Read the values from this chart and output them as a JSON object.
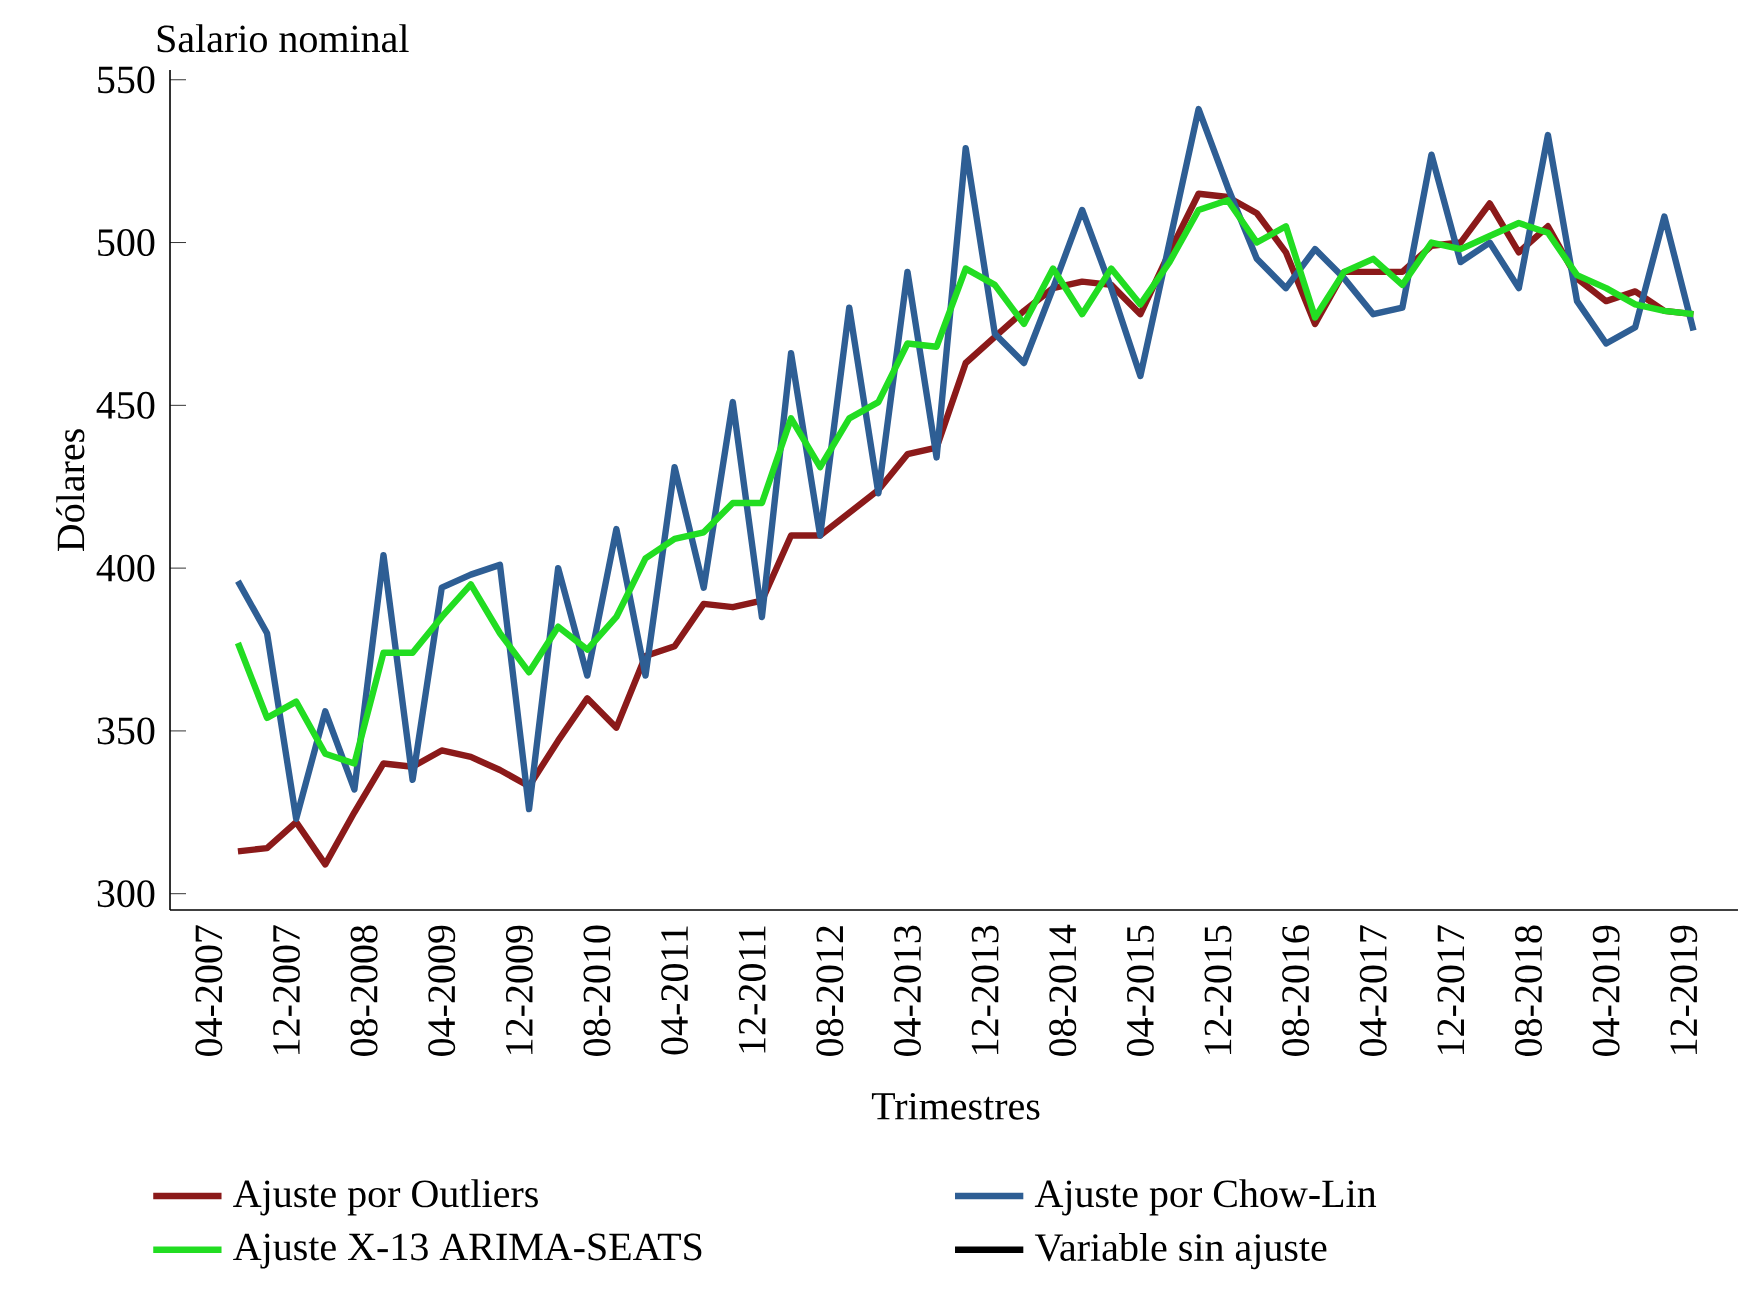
{
  "chart_data": {
    "type": "line",
    "title": "Salario nominal",
    "xlabel": "Trimestres",
    "ylabel": "Dólares",
    "x": [
      "2007-07",
      "2007-10",
      "2008-01",
      "2008-04",
      "2008-07",
      "2008-10",
      "2009-01",
      "2009-04",
      "2009-07",
      "2009-10",
      "2010-01",
      "2010-04",
      "2010-07",
      "2010-10",
      "2011-01",
      "2011-04",
      "2011-07",
      "2011-10",
      "2012-01",
      "2012-04",
      "2012-07",
      "2012-10",
      "2013-01",
      "2013-04",
      "2013-07",
      "2013-10",
      "2014-01",
      "2014-04",
      "2014-07",
      "2014-10",
      "2015-01",
      "2015-04",
      "2015-07",
      "2015-10",
      "2016-01",
      "2016-04",
      "2016-07",
      "2016-10",
      "2017-01",
      "2017-04",
      "2017-07",
      "2017-10",
      "2018-01",
      "2018-04",
      "2018-07",
      "2018-10",
      "2019-01",
      "2019-04",
      "2019-07",
      "2019-10",
      "2020-01"
    ],
    "series": [
      {
        "name": "Ajuste por Outliers",
        "color": "#8b1a1a",
        "values": [
          313,
          314,
          322,
          309,
          325,
          340,
          339,
          344,
          342,
          338,
          333,
          347,
          360,
          351,
          373,
          376,
          389,
          388,
          390,
          410,
          410,
          417,
          424,
          435,
          437,
          463,
          471,
          479,
          486,
          488,
          487,
          478,
          497,
          515,
          514,
          509,
          497,
          475,
          491,
          491,
          491,
          499,
          500,
          512,
          497,
          505,
          489,
          482,
          485,
          479,
          478
        ]
      },
      {
        "name": "Ajuste por Chow-Lin",
        "color": "#2e5e94",
        "values": [
          396,
          380,
          323,
          356,
          332,
          404,
          335,
          394,
          398,
          401,
          326,
          400,
          367,
          412,
          367,
          431,
          394,
          451,
          385,
          466,
          410,
          480,
          423,
          491,
          434,
          529,
          472,
          463,
          486,
          510,
          486,
          459,
          500,
          541,
          517,
          495,
          486,
          498,
          489,
          478,
          480,
          527,
          494,
          500,
          486,
          533,
          482,
          469,
          474,
          508,
          473
        ]
      },
      {
        "name": "Ajuste X-13 ARIMA-SEATS",
        "color": "#22dd22",
        "values": [
          377,
          354,
          359,
          343,
          340,
          374,
          374,
          385,
          395,
          380,
          368,
          382,
          375,
          385,
          403,
          409,
          411,
          420,
          420,
          446,
          431,
          446,
          451,
          469,
          468,
          492,
          487,
          475,
          492,
          478,
          492,
          481,
          494,
          510,
          513,
          500,
          505,
          477,
          491,
          495,
          487,
          500,
          498,
          502,
          506,
          503,
          490,
          486,
          481,
          479,
          478
        ]
      },
      {
        "name": "Variable sin ajuste",
        "color": "#000000",
        "values": [
          null,
          null,
          null,
          null,
          null,
          null,
          null,
          null,
          null,
          null,
          null,
          null,
          null,
          null,
          null,
          null,
          null,
          null,
          null,
          null,
          null,
          null,
          null,
          null,
          null,
          null,
          null,
          null,
          null,
          null,
          null,
          null,
          null,
          null,
          null,
          null,
          null,
          null,
          null,
          null,
          null,
          null,
          null,
          null,
          null,
          null,
          null,
          null,
          null,
          null,
          null
        ]
      }
    ],
    "xlim": [
      "2006-12",
      "2020-06"
    ],
    "xticks": [
      {
        "value": "2007-04",
        "label": "04-2007"
      },
      {
        "value": "2007-12",
        "label": "12-2007"
      },
      {
        "value": "2008-08",
        "label": "08-2008"
      },
      {
        "value": "2009-04",
        "label": "04-2009"
      },
      {
        "value": "2009-12",
        "label": "12-2009"
      },
      {
        "value": "2010-08",
        "label": "08-2010"
      },
      {
        "value": "2011-04",
        "label": "04-2011"
      },
      {
        "value": "2011-12",
        "label": "12-2011"
      },
      {
        "value": "2012-08",
        "label": "08-2012"
      },
      {
        "value": "2013-04",
        "label": "04-2013"
      },
      {
        "value": "2013-12",
        "label": "12-2013"
      },
      {
        "value": "2014-08",
        "label": "08-2014"
      },
      {
        "value": "2015-04",
        "label": "04-2015"
      },
      {
        "value": "2015-12",
        "label": "12-2015"
      },
      {
        "value": "2016-08",
        "label": "08-2016"
      },
      {
        "value": "2017-04",
        "label": "04-2017"
      },
      {
        "value": "2017-12",
        "label": "12-2017"
      },
      {
        "value": "2018-08",
        "label": "08-2018"
      },
      {
        "value": "2019-04",
        "label": "04-2019"
      },
      {
        "value": "2019-12",
        "label": "12-2019"
      }
    ],
    "ylim": [
      295,
      553
    ],
    "yticks": [
      300,
      350,
      400,
      450,
      500,
      550
    ],
    "legend": "bottom",
    "grid": false,
    "marker": "none",
    "line_style": "solid"
  }
}
